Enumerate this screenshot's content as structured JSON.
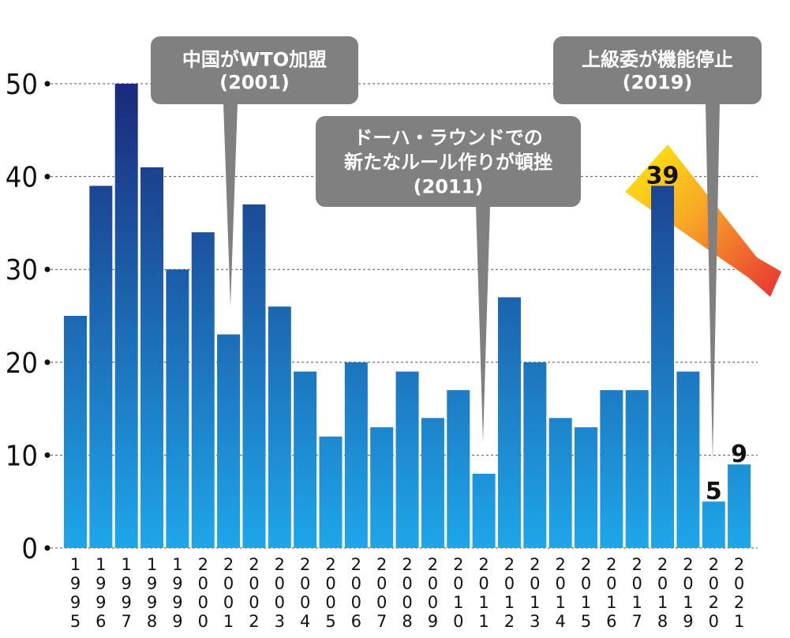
{
  "chart_data": {
    "type": "bar",
    "categories": [
      "1995",
      "1996",
      "1997",
      "1998",
      "1999",
      "2000",
      "2001",
      "2002",
      "2003",
      "2004",
      "2005",
      "2006",
      "2007",
      "2008",
      "2009",
      "2010",
      "2011",
      "2012",
      "2013",
      "2014",
      "2015",
      "2016",
      "2017",
      "2018",
      "2019",
      "2020",
      "2021"
    ],
    "values": [
      25,
      39,
      50,
      41,
      30,
      34,
      23,
      37,
      26,
      19,
      12,
      20,
      13,
      19,
      14,
      17,
      8,
      27,
      20,
      14,
      13,
      17,
      17,
      39,
      19,
      5,
      9
    ],
    "ylim": [
      0,
      50
    ],
    "yticks": [
      0,
      10,
      20,
      30,
      40,
      50
    ],
    "grid": true,
    "data_labels": [
      {
        "category": "2018",
        "text": "39"
      },
      {
        "category": "2020",
        "text": "5"
      },
      {
        "category": "2021",
        "text": "9"
      }
    ],
    "annotations": [
      {
        "lines": [
          "中国がWTO加盟",
          "(2001)"
        ],
        "target": "2001"
      },
      {
        "lines": [
          "ドーハ・ラウンドでの",
          "新たなルール作りが頓挫",
          "(2011)"
        ],
        "target": "2011"
      },
      {
        "lines": [
          "上級委が機能停止",
          "(2019)"
        ],
        "target": "2020"
      }
    ],
    "colors": {
      "bar_top": "#1b2a7a",
      "bar_bottom": "#1ea6ea",
      "callout": "#808080",
      "arrow_start": "#ffee00",
      "arrow_end": "#e8252a"
    }
  }
}
